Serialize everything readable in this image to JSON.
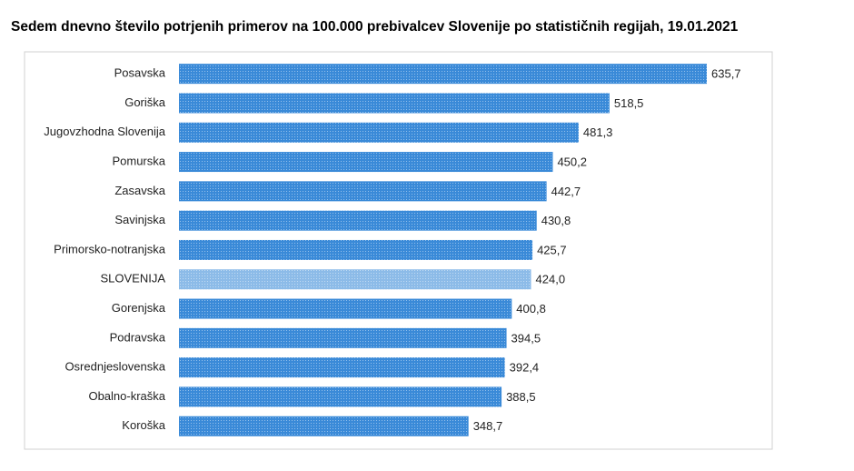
{
  "chart_data": {
    "type": "hbar",
    "title": "Sedem dnevno število potrjenih primerov na 100.000 prebivalcev Slovenije po statističnih regijah, 19.01.2021",
    "categories": [
      "Posavska",
      "Goriška",
      "Jugovzhodna Slovenija",
      "Pomurska",
      "Zasavska",
      "Savinjska",
      "Primorsko-notranjska",
      "SLOVENIJA",
      "Gorenjska",
      "Podravska",
      "Osrednjeslovenska",
      "Obalno-kraška",
      "Koroška"
    ],
    "values": [
      635.7,
      518.5,
      481.3,
      450.2,
      442.7,
      430.8,
      425.7,
      424.0,
      400.8,
      394.5,
      392.4,
      388.5,
      348.7
    ],
    "value_labels": [
      "635,7",
      "518,5",
      "481,3",
      "450,2",
      "442,7",
      "430,8",
      "425,7",
      "424,0",
      "400,8",
      "394,5",
      "392,4",
      "388,5",
      "348,7"
    ],
    "colors": [
      "#3a8ad8",
      "#3a8ad8",
      "#3a8ad8",
      "#3a8ad8",
      "#3a8ad8",
      "#3a8ad8",
      "#3a8ad8",
      "#8cbbe8",
      "#3a8ad8",
      "#3a8ad8",
      "#3a8ad8",
      "#3a8ad8",
      "#3a8ad8"
    ]
  }
}
